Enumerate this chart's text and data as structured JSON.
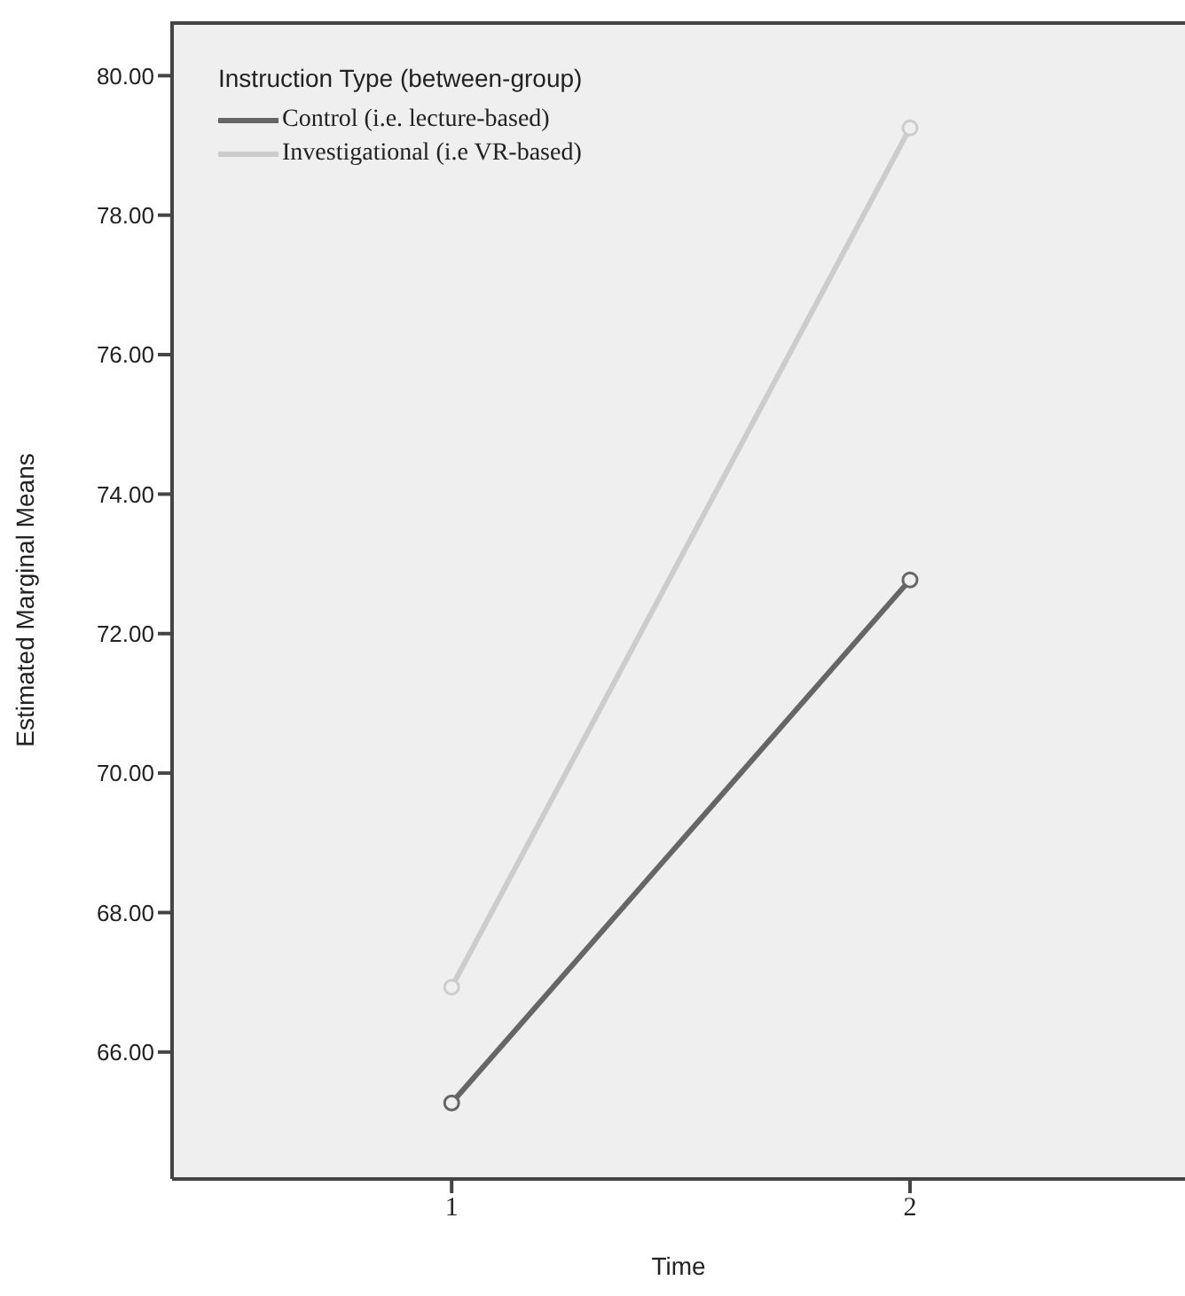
{
  "chart_data": {
    "type": "line",
    "xlabel": "Time",
    "ylabel": "Estimated Marginal Means",
    "legend_title": "Instruction Type (between-group)",
    "x": [
      1,
      2
    ],
    "series": [
      {
        "name": "Control (i.e. lecture-based)",
        "color": "#666666",
        "values": [
          65.27,
          72.77
        ]
      },
      {
        "name": "Investigational (i.e VR-based)",
        "color": "#cccccc",
        "values": [
          66.93,
          79.25
        ]
      }
    ],
    "xlim": [
      0.39,
      2.6
    ],
    "xticks": [
      1,
      2
    ],
    "ylim": [
      64.18,
      80.78
    ],
    "yticks": [
      {
        "value": 66,
        "label": "66.00"
      },
      {
        "value": 68,
        "label": "68.00"
      },
      {
        "value": 70,
        "label": "70.00"
      },
      {
        "value": 72,
        "label": "72.00"
      },
      {
        "value": 74,
        "label": "74.00"
      },
      {
        "value": 76,
        "label": "76.00"
      },
      {
        "value": 78,
        "label": "78.00"
      },
      {
        "value": 80,
        "label": "80.00"
      }
    ],
    "marker": "circle",
    "line_style": "solid",
    "legend": "top left",
    "grid": false
  }
}
